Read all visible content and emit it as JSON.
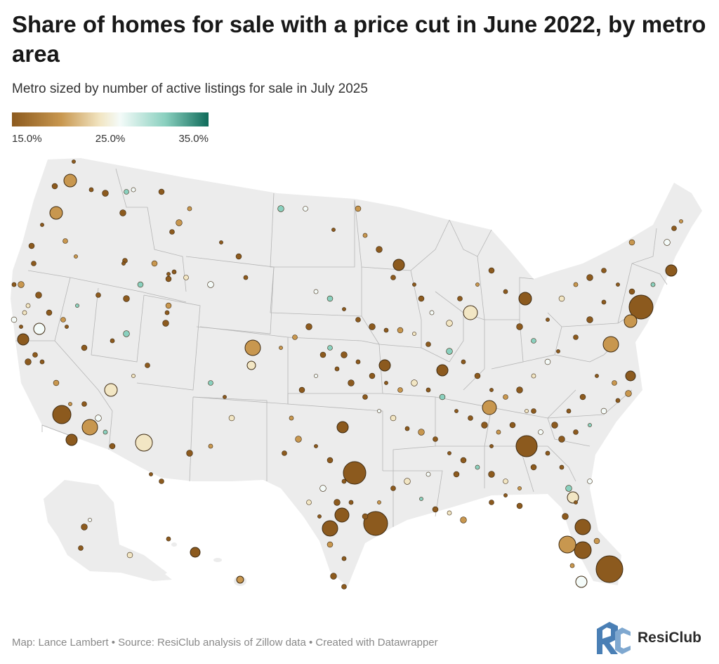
{
  "header": {
    "title": "Share of homes for sale with a price cut in June 2022, by metro area",
    "subtitle": "Metro sized by number of active listings for sale in July 2025"
  },
  "legend": {
    "ticks": [
      "15.0%",
      "25.0%",
      "35.0%"
    ],
    "colors": {
      "low": "#8c5a1e",
      "lowmid": "#c8974f",
      "mid": "#f2e6c4",
      "center": "#f4fbf9",
      "highmid": "#8ad0bf",
      "high": "#0f6b5a"
    }
  },
  "map": {
    "land_color": "#ececec",
    "border_color": "#b5b5b5"
  },
  "footer": {
    "credit": "Map: Lance Lambert • Source: ResiClub analysis of Zillow data • Created with Datawrapper"
  },
  "logo": {
    "monogram": "RC",
    "wordmark": "ResiClub",
    "colors": {
      "r": "#4a7fb5",
      "c": "#7fa8d0"
    }
  }
}
